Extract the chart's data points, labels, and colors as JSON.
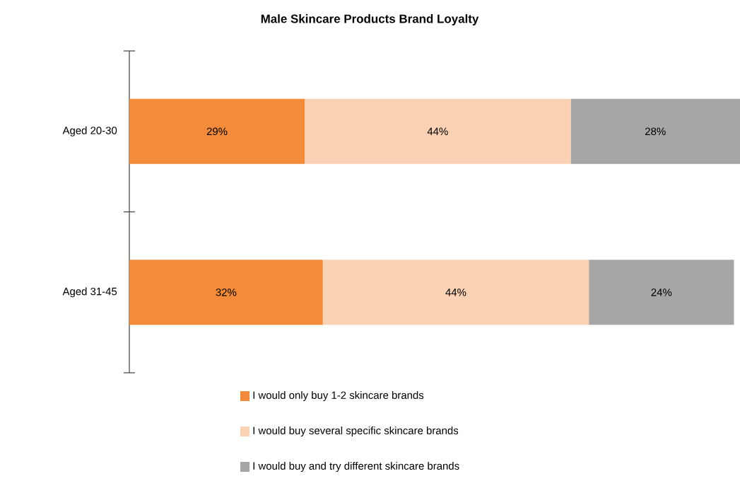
{
  "chart_data": {
    "type": "bar",
    "orientation": "horizontal",
    "stacked": true,
    "title": "Male Skincare Products Brand Loyalty",
    "categories": [
      "Aged 20-30",
      "Aged 31-45"
    ],
    "series": [
      {
        "name": "I would only buy 1-2 skincare brands",
        "color": "#f38b3a",
        "values": [
          29,
          32
        ],
        "value_labels": [
          "29%",
          "32%"
        ]
      },
      {
        "name": "I would buy several specific skincare brands",
        "color": "#fbd3b4",
        "values": [
          44,
          44
        ],
        "value_labels": [
          "44%",
          "44%"
        ]
      },
      {
        "name": "I would buy and try different skincare brands",
        "color": "#a6a6a6",
        "values": [
          28,
          24
        ],
        "value_labels": [
          "28%",
          "24%"
        ]
      }
    ],
    "legend": "bottom"
  }
}
